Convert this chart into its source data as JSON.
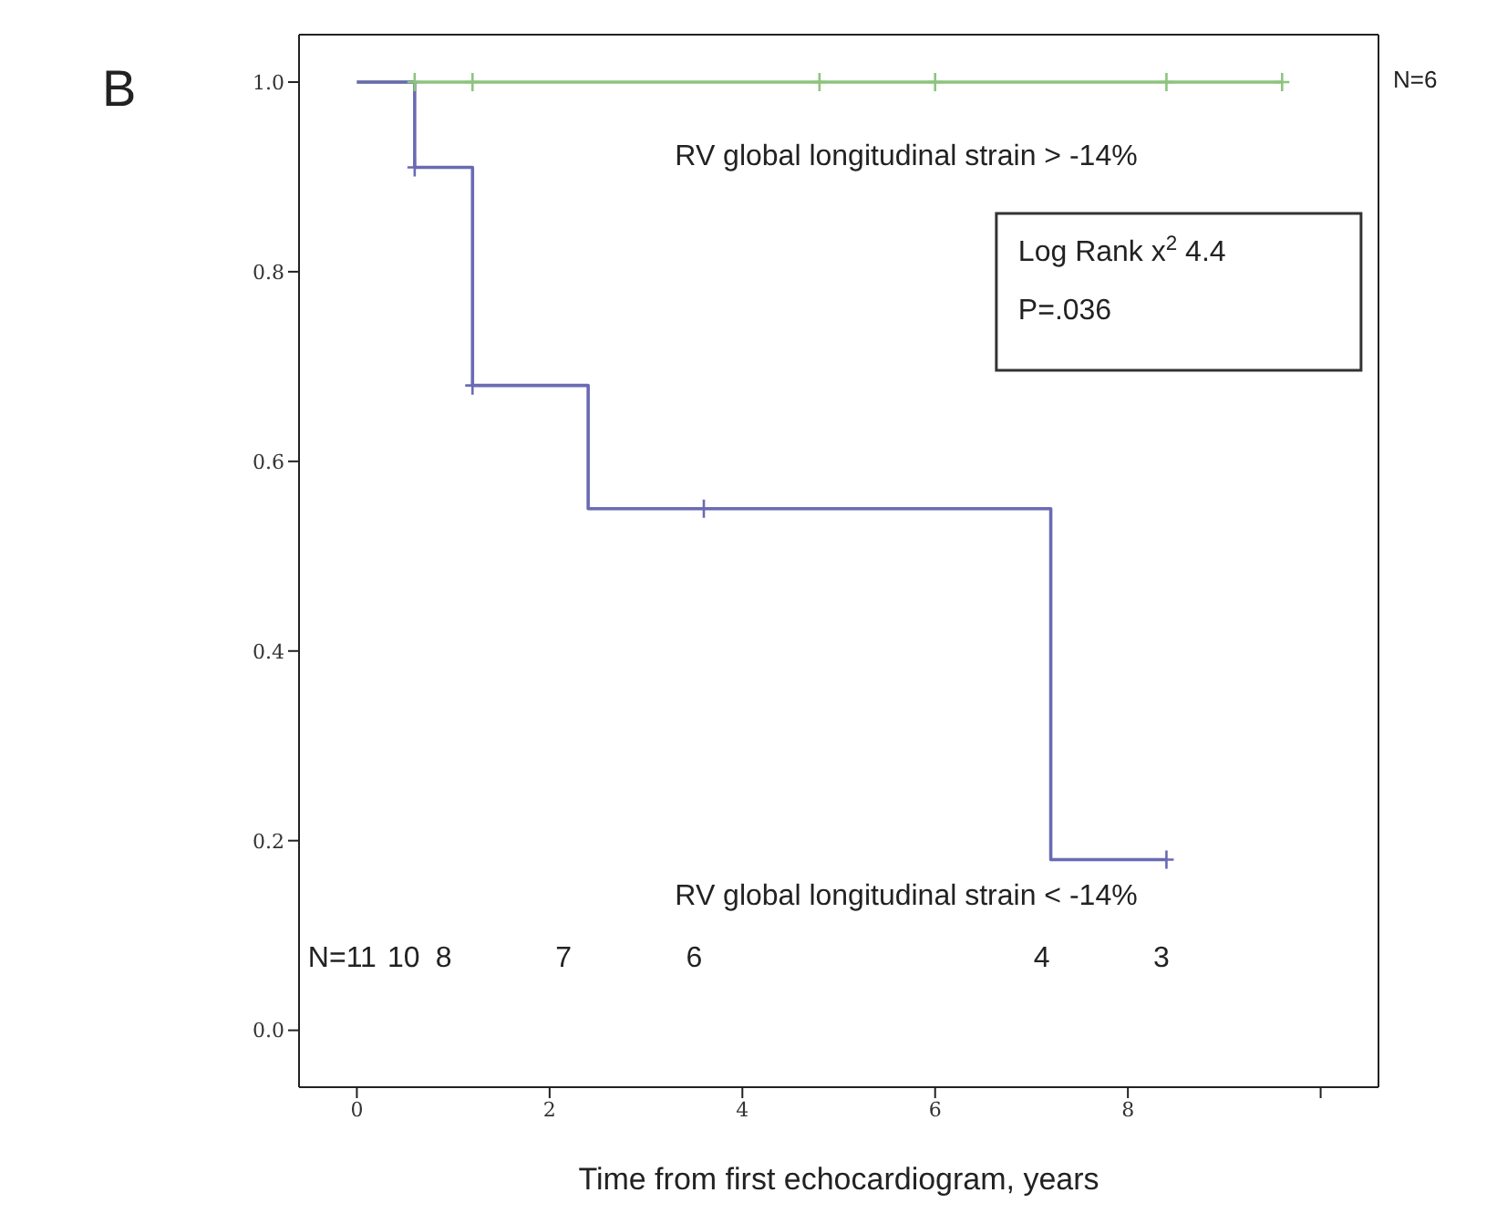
{
  "chart_data": {
    "type": "step",
    "title": "B",
    "xlabel": "Time from first echocardiogram, years",
    "xlim": [
      -0.6,
      10.6
    ],
    "xticks": [
      0,
      2,
      4,
      6,
      8,
      {
        "value": 10,
        "label": null
      }
    ],
    "ylim": [
      -0.06,
      1.05
    ],
    "yticks": [
      {
        "value": 0,
        "label": "0.0"
      },
      0.2,
      0.4,
      0.6,
      0.8,
      {
        "value": 1,
        "label": "1.0"
      }
    ],
    "grid": false,
    "legend": false,
    "line_style": "solid",
    "series": [
      {
        "color": "#8cc47e",
        "x": [
          0,
          9.6
        ],
        "values": [
          1,
          1
        ]
      },
      {
        "color": "#6a6ab4",
        "x": [
          0,
          0.6,
          1.2,
          2.4,
          7.2,
          8.4
        ],
        "values": [
          1,
          0.91,
          0.68,
          0.55,
          0.18,
          0.18
        ]
      },
      {
        "type": "scatter",
        "marker": "cross",
        "color": "#8cc47e",
        "x": [
          0.6,
          1.2,
          4.8,
          6.0,
          8.4,
          9.6
        ],
        "values": [
          1,
          1,
          1,
          1,
          1,
          1
        ]
      },
      {
        "type": "scatter",
        "marker": "cross",
        "color": "#6a6ab4",
        "x": [
          0.6,
          1.2,
          3.6,
          8.4
        ],
        "values": [
          0.91,
          0.68,
          0.55,
          0.18
        ]
      }
    ],
    "annotations": [
      "RV global longitudinal strain > -14%",
      "RV global longitudinal strain < -14%",
      "N=11",
      "10",
      "8",
      "7",
      "6",
      "4",
      "3",
      "Log Rank x$^{2}$ 4.4",
      "P=.036",
      "N=6"
    ]
  }
}
